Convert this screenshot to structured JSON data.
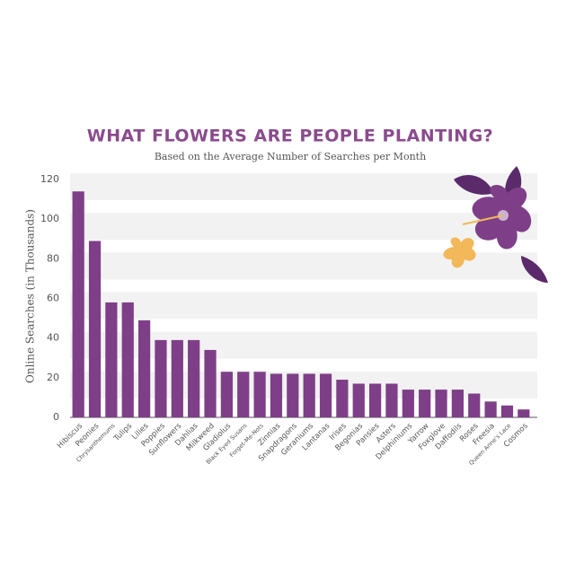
{
  "chart_data": {
    "type": "bar",
    "title": "WHAT FLOWERS ARE PEOPLE PLANTING?",
    "subtitle": "Based on the Average Number of Searches per Month",
    "y_label": "Online Searches (in Thousands)",
    "categories": [
      "Hibiscus",
      "Peonies",
      "Chrysanthemums",
      "Tulips",
      "Lilies",
      "Poppies",
      "Sunflowers",
      "Dahlias",
      "Milkweed",
      "Gladiolus",
      "Black Eyed Susans",
      "Forget-Me-Nots",
      "Zinnias",
      "Snapdragons",
      "Geraniums",
      "Lantanas",
      "Irises",
      "Begonias",
      "Pansies",
      "Asters",
      "Delphiniums",
      "Yarrow",
      "Foxglove",
      "Daffodils",
      "Roses",
      "Freesia",
      "Queen Anne's Lace",
      "Cosmos"
    ],
    "values": [
      114,
      89,
      58,
      58,
      49,
      39,
      39,
      39,
      34,
      23,
      23,
      23,
      22,
      22,
      22,
      22,
      19,
      17,
      17,
      17,
      14,
      14,
      14,
      14,
      12,
      8,
      6,
      4
    ],
    "color": "#7e3f88",
    "ylim": [
      0,
      120
    ],
    "yticks": [
      0,
      20,
      40,
      60,
      80,
      100,
      120
    ],
    "grid": true
  }
}
